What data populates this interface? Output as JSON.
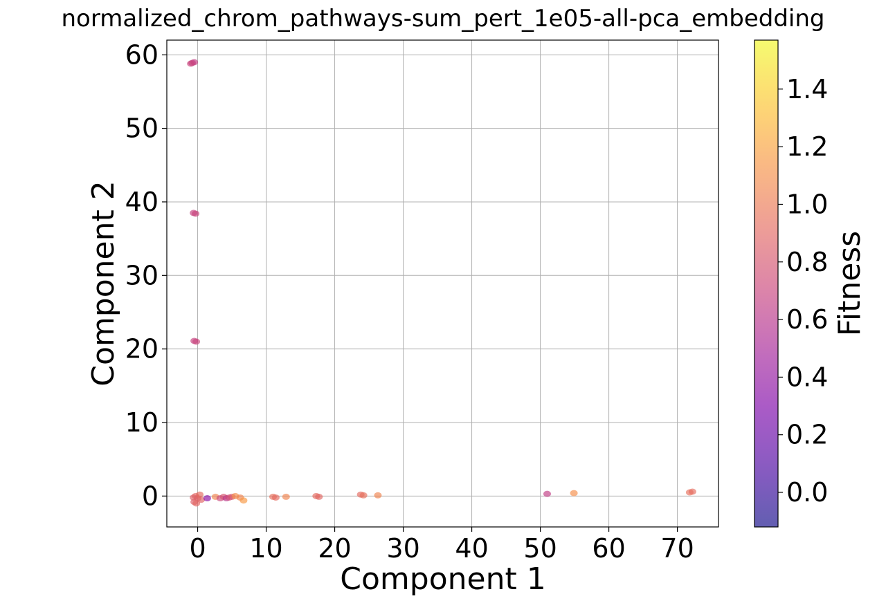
{
  "chart_data": {
    "type": "scatter",
    "title": "normalized_chrom_pathways-sum_pert_1e05-all-pca_embedding",
    "xlabel": "Component 1",
    "ylabel": "Component 2",
    "xlim": [
      -4.5,
      76
    ],
    "ylim": [
      -4.2,
      62
    ],
    "xticks": [
      0,
      10,
      20,
      30,
      40,
      50,
      60,
      70
    ],
    "xtick_labels": [
      "0",
      "10",
      "20",
      "30",
      "40",
      "50",
      "60",
      "70"
    ],
    "yticks": [
      0,
      10,
      20,
      30,
      40,
      50,
      60
    ],
    "ytick_labels": [
      "0",
      "10",
      "20",
      "30",
      "40",
      "50",
      "60"
    ],
    "grid": true,
    "colorbar": {
      "label": "Fitness",
      "colormap": "plasma",
      "alpha": 0.65,
      "range": [
        -0.12,
        1.57
      ],
      "ticks": [
        0.0,
        0.2,
        0.4,
        0.6,
        0.8,
        1.0,
        1.2,
        1.4
      ],
      "tick_labels": [
        "0.0",
        "0.2",
        "0.4",
        "0.6",
        "0.8",
        "1.0",
        "1.2",
        "1.4"
      ]
    },
    "points": [
      {
        "x": -0.8,
        "y": 58.9,
        "fitness": 0.68
      },
      {
        "x": -0.5,
        "y": 59.0,
        "fitness": 0.66
      },
      {
        "x": -1.0,
        "y": 58.8,
        "fitness": 0.7
      },
      {
        "x": -0.6,
        "y": 38.5,
        "fitness": 0.68
      },
      {
        "x": -0.3,
        "y": 38.4,
        "fitness": 0.7
      },
      {
        "x": -0.5,
        "y": 21.1,
        "fitness": 0.68
      },
      {
        "x": -0.2,
        "y": 21.0,
        "fitness": 0.7
      },
      {
        "x": -0.3,
        "y": 0.0,
        "fitness": 0.9
      },
      {
        "x": 0.0,
        "y": -0.3,
        "fitness": 0.88
      },
      {
        "x": -0.5,
        "y": -0.8,
        "fitness": 0.85
      },
      {
        "x": 0.3,
        "y": 0.2,
        "fitness": 0.92
      },
      {
        "x": -0.2,
        "y": -1.0,
        "fitness": 0.9
      },
      {
        "x": 0.5,
        "y": -0.5,
        "fitness": 0.88
      },
      {
        "x": -0.6,
        "y": -0.2,
        "fitness": 0.86
      },
      {
        "x": 1.4,
        "y": -0.3,
        "fitness": 0.35
      },
      {
        "x": 2.6,
        "y": -0.1,
        "fitness": 1.05
      },
      {
        "x": 3.3,
        "y": -0.3,
        "fitness": 0.72
      },
      {
        "x": 3.8,
        "y": -0.1,
        "fitness": 0.8
      },
      {
        "x": 4.2,
        "y": -0.3,
        "fitness": 0.6
      },
      {
        "x": 4.6,
        "y": -0.2,
        "fitness": 0.75
      },
      {
        "x": 5.0,
        "y": -0.1,
        "fitness": 0.82
      },
      {
        "x": 5.5,
        "y": 0.0,
        "fitness": 1.1
      },
      {
        "x": 6.2,
        "y": -0.2,
        "fitness": 1.05
      },
      {
        "x": 6.7,
        "y": -0.6,
        "fitness": 1.15
      },
      {
        "x": 11.0,
        "y": -0.1,
        "fitness": 0.95
      },
      {
        "x": 11.4,
        "y": -0.2,
        "fitness": 0.92
      },
      {
        "x": 12.9,
        "y": -0.1,
        "fitness": 1.05
      },
      {
        "x": 17.3,
        "y": 0.0,
        "fitness": 0.92
      },
      {
        "x": 17.7,
        "y": -0.1,
        "fitness": 0.9
      },
      {
        "x": 23.8,
        "y": 0.2,
        "fitness": 0.92
      },
      {
        "x": 24.2,
        "y": 0.1,
        "fitness": 0.95
      },
      {
        "x": 26.3,
        "y": 0.1,
        "fitness": 1.05
      },
      {
        "x": 51.0,
        "y": 0.3,
        "fitness": 0.65
      },
      {
        "x": 54.9,
        "y": 0.4,
        "fitness": 1.1
      },
      {
        "x": 71.8,
        "y": 0.5,
        "fitness": 0.95
      },
      {
        "x": 72.2,
        "y": 0.6,
        "fitness": 0.93
      }
    ]
  }
}
